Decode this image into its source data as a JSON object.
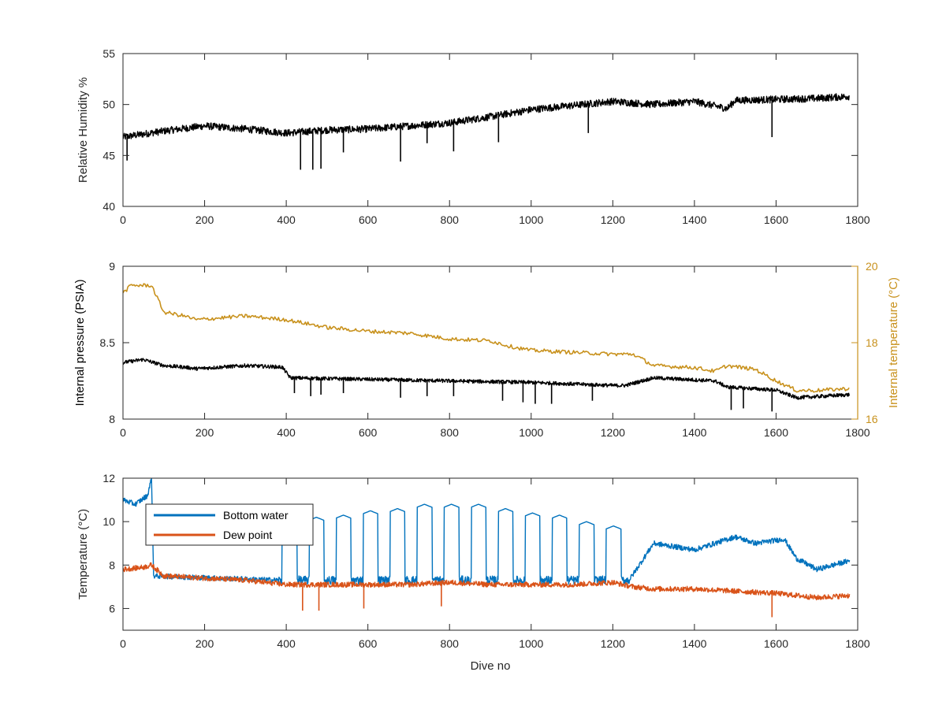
{
  "chart_data": [
    {
      "type": "line",
      "ylabel": "Relative Humidity %",
      "xlim": [
        0,
        1800
      ],
      "ylim": [
        40,
        55
      ],
      "x_ticks": [
        0,
        200,
        400,
        600,
        800,
        1000,
        1200,
        1400,
        1600,
        1800
      ],
      "y_ticks": [
        40,
        45,
        50,
        55
      ],
      "series": [
        {
          "color": "#000000",
          "x": [
            0,
            100,
            200,
            300,
            400,
            500,
            600,
            700,
            800,
            900,
            1000,
            1100,
            1200,
            1300,
            1400,
            1480,
            1500,
            1600,
            1700,
            1780
          ],
          "y": [
            46.8,
            47.4,
            47.9,
            47.6,
            47.2,
            47.5,
            47.6,
            47.9,
            48.2,
            48.8,
            49.5,
            49.9,
            50.3,
            50.0,
            50.3,
            49.6,
            50.4,
            50.5,
            50.6,
            50.8
          ],
          "spikes": [
            {
              "x": 435,
              "y": 43.6
            },
            {
              "x": 465,
              "y": 43.6
            },
            {
              "x": 485,
              "y": 43.7
            },
            {
              "x": 540,
              "y": 45.3
            },
            {
              "x": 680,
              "y": 44.4
            },
            {
              "x": 745,
              "y": 46.2
            },
            {
              "x": 810,
              "y": 45.4
            },
            {
              "x": 920,
              "y": 46.3
            },
            {
              "x": 1140,
              "y": 47.2
            },
            {
              "x": 1590,
              "y": 46.8
            },
            {
              "x": 10,
              "y": 44.5
            }
          ]
        }
      ]
    },
    {
      "type": "line",
      "ylabel": "Internal pressure (PSIA)",
      "y2label": "Internal temperature (°C)",
      "xlim": [
        0,
        1800
      ],
      "ylim": [
        8,
        9
      ],
      "y2lim": [
        16,
        20
      ],
      "x_ticks": [
        0,
        200,
        400,
        600,
        800,
        1000,
        1200,
        1400,
        1600,
        1800
      ],
      "y_ticks": [
        "8",
        "8.5",
        "9"
      ],
      "y2_ticks": [
        16,
        18,
        20
      ],
      "series": [
        {
          "axis": "left",
          "color": "#000000",
          "x": [
            0,
            50,
            100,
            150,
            180,
            300,
            390,
            410,
            600,
            800,
            1000,
            1200,
            1230,
            1300,
            1450,
            1480,
            1600,
            1650,
            1780
          ],
          "y": [
            8.37,
            8.39,
            8.35,
            8.34,
            8.33,
            8.35,
            8.34,
            8.27,
            8.26,
            8.25,
            8.24,
            8.22,
            8.22,
            8.27,
            8.25,
            8.21,
            8.19,
            8.14,
            8.16
          ],
          "spikes": [
            {
              "x": 420,
              "y": 8.17
            },
            {
              "x": 460,
              "y": 8.15
            },
            {
              "x": 485,
              "y": 8.16
            },
            {
              "x": 540,
              "y": 8.17
            },
            {
              "x": 680,
              "y": 8.14
            },
            {
              "x": 745,
              "y": 8.15
            },
            {
              "x": 810,
              "y": 8.15
            },
            {
              "x": 930,
              "y": 8.12
            },
            {
              "x": 980,
              "y": 8.11
            },
            {
              "x": 1010,
              "y": 8.1
            },
            {
              "x": 1050,
              "y": 8.1
            },
            {
              "x": 1150,
              "y": 8.12
            },
            {
              "x": 1490,
              "y": 8.06
            },
            {
              "x": 1520,
              "y": 8.07
            },
            {
              "x": 1590,
              "y": 8.05
            }
          ]
        },
        {
          "axis": "right",
          "color": "#C8911C",
          "x": [
            0,
            20,
            70,
            100,
            150,
            180,
            300,
            400,
            500,
            600,
            700,
            800,
            900,
            950,
            1000,
            1100,
            1200,
            1250,
            1300,
            1400,
            1450,
            1480,
            1550,
            1600,
            1650,
            1700,
            1780
          ],
          "y": [
            19.3,
            19.5,
            19.5,
            18.8,
            18.7,
            18.6,
            18.7,
            18.6,
            18.4,
            18.3,
            18.25,
            18.1,
            18.05,
            17.9,
            17.8,
            17.75,
            17.7,
            17.7,
            17.4,
            17.35,
            17.25,
            17.4,
            17.3,
            17.0,
            16.75,
            16.75,
            16.8
          ]
        }
      ]
    },
    {
      "type": "line",
      "xlabel": "Dive no",
      "ylabel": "Temperature (°C)",
      "xlim": [
        0,
        1800
      ],
      "ylim": [
        5,
        12
      ],
      "x_ticks": [
        0,
        200,
        400,
        600,
        800,
        1000,
        1200,
        1400,
        1600,
        1800
      ],
      "y_ticks": [
        6,
        8,
        10,
        12
      ],
      "legend": "top-left",
      "series": [
        {
          "name": "Bottom water",
          "color": "#0072BD",
          "x": [
            0,
            30,
            60,
            70,
            75,
            380,
            1240,
            1300,
            1400,
            1500,
            1550,
            1620,
            1650,
            1700,
            1780
          ],
          "y": [
            11.0,
            10.8,
            11.2,
            12.0,
            7.5,
            7.3,
            7.3,
            9.0,
            8.7,
            9.3,
            9.0,
            9.2,
            8.3,
            7.8,
            8.2
          ],
          "oscillation": {
            "x_start": 380,
            "x_end": 1240,
            "high": [
              9.8,
              10.2,
              10.3,
              10.5,
              10.6,
              10.8,
              10.8,
              10.8,
              10.6,
              10.4,
              10.3,
              10.0,
              9.8
            ],
            "low": 7.3
          }
        },
        {
          "name": "Dew point",
          "color": "#D95319",
          "x": [
            0,
            50,
            70,
            100,
            200,
            300,
            400,
            500,
            600,
            700,
            800,
            900,
            1000,
            1100,
            1200,
            1250,
            1300,
            1400,
            1500,
            1600,
            1700,
            1780
          ],
          "y": [
            7.8,
            7.9,
            8.0,
            7.5,
            7.4,
            7.3,
            7.1,
            7.1,
            7.1,
            7.1,
            7.2,
            7.1,
            7.1,
            7.1,
            7.2,
            7.0,
            6.9,
            6.9,
            6.8,
            6.7,
            6.5,
            6.6
          ],
          "spikes": [
            {
              "x": 440,
              "y": 5.9
            },
            {
              "x": 480,
              "y": 5.9
            },
            {
              "x": 590,
              "y": 6.0
            },
            {
              "x": 780,
              "y": 6.1
            },
            {
              "x": 1590,
              "y": 5.6
            }
          ]
        }
      ]
    }
  ]
}
